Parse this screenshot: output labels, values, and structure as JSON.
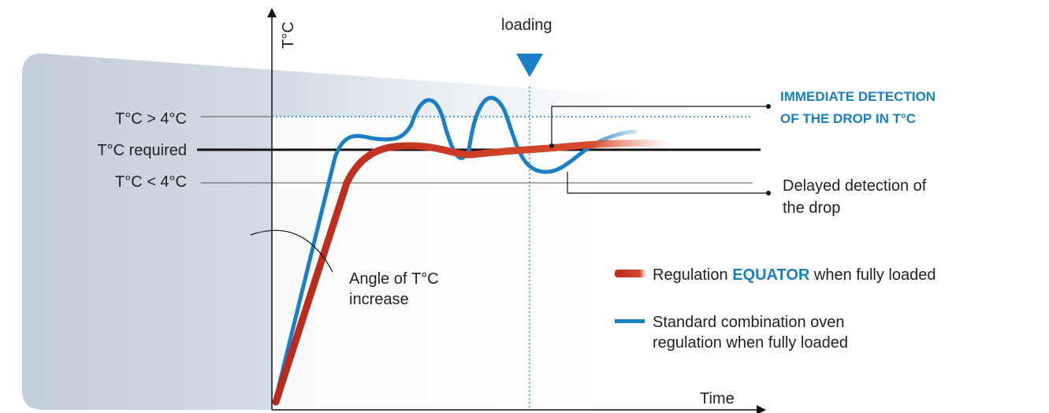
{
  "axes": {
    "y_label": "T°C",
    "x_label": "Time"
  },
  "marker": {
    "label": "loading"
  },
  "levels": [
    "T°C > 4°C",
    "T°C required",
    "T°C < 4°C"
  ],
  "annotations": {
    "immediate": [
      "IMMEDIATE DETECTION",
      "OF THE DROP IN T°C"
    ],
    "delayed": [
      "Delayed detection of",
      "the drop"
    ],
    "angle": [
      "Angle of T°C",
      "increase"
    ]
  },
  "legend": {
    "equator": [
      "Regulation ",
      "EQUATOR",
      " when fully loaded"
    ],
    "standard": [
      "Standard combination oven",
      "regulation when fully loaded"
    ]
  }
}
